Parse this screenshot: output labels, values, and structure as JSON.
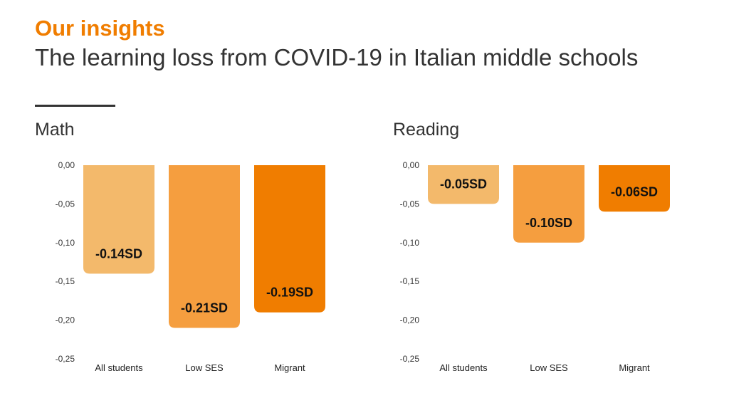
{
  "header": {
    "kicker": "Our insights",
    "title": "The learning loss from COVID-19 in Italian middle schools"
  },
  "colors": {
    "accent": "#f07d00",
    "bar_light": "#f3b96b",
    "bar_mid": "#f59e3f",
    "bar_dark": "#f07d00",
    "text": "#333333"
  },
  "chart_data": [
    {
      "type": "bar",
      "title": "Math",
      "categories": [
        "All students",
        "Low SES",
        "Migrant"
      ],
      "values": [
        -0.14,
        -0.21,
        -0.19
      ],
      "data_labels": [
        "-0.14SD",
        "-0.21SD",
        "-0.19SD"
      ],
      "ylim": [
        -0.25,
        0
      ],
      "yticks": [
        "0,00",
        "-0,05",
        "-0,10",
        "-0,15",
        "-0,20",
        "-0,25"
      ],
      "grid": false,
      "legend": "none"
    },
    {
      "type": "bar",
      "title": "Reading",
      "categories": [
        "All students",
        "Low SES",
        "Migrant"
      ],
      "values": [
        -0.05,
        -0.1,
        -0.06
      ],
      "data_labels": [
        "-0.05SD",
        "-0.10SD",
        "-0.06SD"
      ],
      "ylim": [
        -0.25,
        0
      ],
      "yticks": [
        "0,00",
        "-0,05",
        "-0,10",
        "-0,15",
        "-0,20",
        "-0,25"
      ],
      "grid": false,
      "legend": "none"
    }
  ]
}
